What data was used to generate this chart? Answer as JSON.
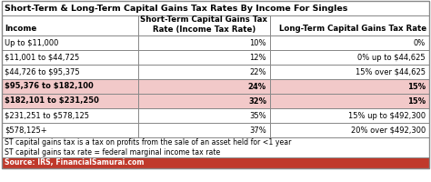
{
  "title": "Short-Term & Long-Term Capital Gains Tax Rates By Income For Singles",
  "col1_header": "Income",
  "col2_header": "Short-Term Capital Gains Tax\nRate (Income Tax Rate)",
  "col3_header": "Long-Term Capital Gains Tax Rate",
  "rows": [
    [
      "Up to $11,000",
      "10%",
      "0%"
    ],
    [
      "$11,001 to $44,725",
      "12%",
      "0% up to $44,625"
    ],
    [
      "$44,726 to $95,375",
      "22%",
      "15% over $44,625"
    ],
    [
      "$95,376 to $182,100",
      "24%",
      "15%"
    ],
    [
      "$182,101 to $231,250",
      "32%",
      "15%"
    ],
    [
      "$231,251 to $578,125",
      "35%",
      "15% up to $492,300"
    ],
    [
      "$578,125+",
      "37%",
      "20% over $492,300"
    ]
  ],
  "highlighted_rows": [
    3,
    4
  ],
  "highlight_color": "#f2c9c9",
  "footer1": "ST capital gains tax is a tax on profits from the sale of an asset held for <1 year",
  "footer2": "ST capital gains tax rate = federal marginal income tax rate",
  "source_text": "Source: IRS, FinancialSamurai.com",
  "source_bg": "#c0392b",
  "source_fg": "#ffffff",
  "border_color": "#888888",
  "normal_row_bg": "#ffffff",
  "title_fontsize": 6.8,
  "header_fontsize": 6.2,
  "row_fontsize": 6.0,
  "footer_fontsize": 5.6
}
